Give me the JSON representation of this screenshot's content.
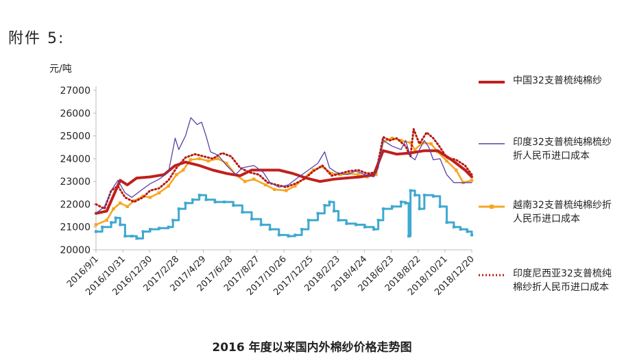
{
  "header": {
    "attachment_label": "附件 5:"
  },
  "caption": "2016 年度以来国内外棉纱价格走势图",
  "colors": {
    "china": "#c0201d",
    "india": "#5b3fa6",
    "vietnam": "#f5a623",
    "indonesia": "#b8190f",
    "lower_series": "#3fa9d0"
  },
  "chart_data": {
    "type": "line",
    "ylabel": "元/吨",
    "ylim": [
      20000,
      27000
    ],
    "yticks": [
      "27000",
      "26000",
      "25000",
      "24000",
      "23000",
      "22000",
      "21000",
      "20000"
    ],
    "xlim": [
      "2016-09-01",
      "2018-12-20"
    ],
    "xticks": [
      {
        "date": "2016-09-01",
        "label": "2016/9/1"
      },
      {
        "date": "2016-10-31",
        "label": "2016/10/31"
      },
      {
        "date": "2016-12-30",
        "label": "2016/12/30"
      },
      {
        "date": "2017-02-28",
        "label": "2017/2/28"
      },
      {
        "date": "2017-04-29",
        "label": "2017/4/29"
      },
      {
        "date": "2017-06-28",
        "label": "2017/6/28"
      },
      {
        "date": "2017-08-27",
        "label": "2017/8/27"
      },
      {
        "date": "2017-10-26",
        "label": "2017/10/26"
      },
      {
        "date": "2017-12-25",
        "label": "2017/12/25"
      },
      {
        "date": "2018-02-23",
        "label": "2018/2/23"
      },
      {
        "date": "2018-04-24",
        "label": "2018/4/24"
      },
      {
        "date": "2018-06-23",
        "label": "2018/6/23"
      },
      {
        "date": "2018-08-22",
        "label": "2018/8/22"
      },
      {
        "date": "2018-10-21",
        "label": "2018/10/21"
      },
      {
        "date": "2018-12-20",
        "label": "2018/12/20"
      }
    ],
    "grid": false,
    "legend_position": "right",
    "series": [
      {
        "key": "china",
        "name": "中国32支普梳纯棉纱",
        "style": "thick-solid",
        "points": [
          [
            "2016-09-01",
            21600
          ],
          [
            "2016-09-25",
            21700
          ],
          [
            "2016-10-15",
            22600
          ],
          [
            "2016-10-25",
            23050
          ],
          [
            "2016-11-10",
            22850
          ],
          [
            "2016-12-01",
            23150
          ],
          [
            "2016-12-31",
            23200
          ],
          [
            "2017-01-31",
            23300
          ],
          [
            "2017-02-25",
            23700
          ],
          [
            "2017-03-20",
            23850
          ],
          [
            "2017-04-20",
            23700
          ],
          [
            "2017-05-20",
            23500
          ],
          [
            "2017-06-20",
            23350
          ],
          [
            "2017-07-20",
            23250
          ],
          [
            "2017-08-15",
            23500
          ],
          [
            "2017-09-15",
            23500
          ],
          [
            "2017-10-15",
            23500
          ],
          [
            "2017-11-15",
            23350
          ],
          [
            "2017-12-15",
            23150
          ],
          [
            "2018-01-15",
            23000
          ],
          [
            "2018-02-15",
            23100
          ],
          [
            "2018-03-15",
            23150
          ],
          [
            "2018-04-15",
            23200
          ],
          [
            "2018-05-15",
            23300
          ],
          [
            "2018-06-05",
            24350
          ],
          [
            "2018-07-05",
            24200
          ],
          [
            "2018-08-05",
            24250
          ],
          [
            "2018-09-05",
            24350
          ],
          [
            "2018-10-05",
            24350
          ],
          [
            "2018-11-05",
            23950
          ],
          [
            "2018-12-05",
            23500
          ],
          [
            "2018-12-20",
            23200
          ]
        ]
      },
      {
        "key": "india",
        "name": "印度32支普梳纯棉梳纱折人民币进口成本",
        "style": "thin-solid",
        "points": [
          [
            "2016-09-01",
            21600
          ],
          [
            "2016-09-20",
            21900
          ],
          [
            "2016-10-05",
            22600
          ],
          [
            "2016-10-20",
            23050
          ],
          [
            "2016-11-05",
            22500
          ],
          [
            "2016-11-20",
            22300
          ],
          [
            "2016-12-10",
            22600
          ],
          [
            "2016-12-31",
            22900
          ],
          [
            "2017-01-20",
            23100
          ],
          [
            "2017-02-10",
            23400
          ],
          [
            "2017-02-25",
            24900
          ],
          [
            "2017-03-05",
            24400
          ],
          [
            "2017-03-20",
            25000
          ],
          [
            "2017-04-01",
            25800
          ],
          [
            "2017-04-15",
            25500
          ],
          [
            "2017-04-25",
            25600
          ],
          [
            "2017-05-05",
            25000
          ],
          [
            "2017-05-15",
            24300
          ],
          [
            "2017-06-01",
            24150
          ],
          [
            "2017-06-20",
            23700
          ],
          [
            "2017-07-10",
            23300
          ],
          [
            "2017-07-25",
            23600
          ],
          [
            "2017-08-20",
            23700
          ],
          [
            "2017-09-10",
            23400
          ],
          [
            "2017-09-25",
            22950
          ],
          [
            "2017-10-15",
            22750
          ],
          [
            "2017-11-05",
            22850
          ],
          [
            "2017-11-25",
            23150
          ],
          [
            "2017-12-20",
            23500
          ],
          [
            "2018-01-10",
            23800
          ],
          [
            "2018-01-25",
            24300
          ],
          [
            "2018-02-05",
            23600
          ],
          [
            "2018-02-20",
            23400
          ],
          [
            "2018-03-15",
            23300
          ],
          [
            "2018-04-05",
            23450
          ],
          [
            "2018-04-25",
            23300
          ],
          [
            "2018-05-15",
            23200
          ],
          [
            "2018-05-25",
            23600
          ],
          [
            "2018-06-05",
            24800
          ],
          [
            "2018-06-25",
            24550
          ],
          [
            "2018-07-15",
            24400
          ],
          [
            "2018-07-25",
            24800
          ],
          [
            "2018-08-05",
            24100
          ],
          [
            "2018-08-15",
            23950
          ],
          [
            "2018-08-25",
            24400
          ],
          [
            "2018-09-05",
            24800
          ],
          [
            "2018-09-15",
            24500
          ],
          [
            "2018-09-25",
            23950
          ],
          [
            "2018-10-10",
            24000
          ],
          [
            "2018-10-25",
            23300
          ],
          [
            "2018-11-10",
            22950
          ],
          [
            "2018-12-01",
            22950
          ],
          [
            "2018-12-20",
            22950
          ]
        ]
      },
      {
        "key": "vietnam",
        "name": "越南32支普梳纯棉纱折人民币进口成本",
        "style": "solid-markers",
        "points": [
          [
            "2016-09-01",
            21100
          ],
          [
            "2016-09-25",
            21300
          ],
          [
            "2016-10-10",
            21800
          ],
          [
            "2016-10-25",
            22050
          ],
          [
            "2016-11-10",
            21900
          ],
          [
            "2016-11-25",
            22150
          ],
          [
            "2016-12-15",
            22350
          ],
          [
            "2016-12-31",
            22300
          ],
          [
            "2017-01-20",
            22500
          ],
          [
            "2017-02-10",
            22800
          ],
          [
            "2017-02-28",
            23300
          ],
          [
            "2017-03-15",
            23500
          ],
          [
            "2017-03-31",
            23950
          ],
          [
            "2017-04-20",
            24000
          ],
          [
            "2017-05-10",
            23900
          ],
          [
            "2017-05-31",
            24000
          ],
          [
            "2017-06-20",
            23800
          ],
          [
            "2017-07-10",
            23300
          ],
          [
            "2017-07-31",
            23000
          ],
          [
            "2017-08-20",
            23100
          ],
          [
            "2017-09-15",
            22850
          ],
          [
            "2017-10-05",
            22650
          ],
          [
            "2017-10-31",
            22600
          ],
          [
            "2017-11-20",
            22800
          ],
          [
            "2017-12-10",
            23150
          ],
          [
            "2017-12-31",
            23500
          ],
          [
            "2018-01-20",
            23650
          ],
          [
            "2018-02-10",
            23350
          ],
          [
            "2018-03-01",
            23300
          ],
          [
            "2018-03-20",
            23350
          ],
          [
            "2018-04-10",
            23300
          ],
          [
            "2018-04-30",
            23200
          ],
          [
            "2018-05-20",
            23300
          ],
          [
            "2018-06-05",
            24750
          ],
          [
            "2018-06-25",
            24900
          ],
          [
            "2018-07-15",
            24800
          ],
          [
            "2018-08-05",
            24700
          ],
          [
            "2018-08-15",
            24400
          ],
          [
            "2018-09-01",
            24700
          ],
          [
            "2018-09-20",
            24650
          ],
          [
            "2018-10-05",
            24300
          ],
          [
            "2018-10-25",
            23900
          ],
          [
            "2018-11-15",
            23500
          ],
          [
            "2018-12-01",
            22950
          ],
          [
            "2018-12-20",
            23050
          ]
        ]
      },
      {
        "key": "indonesia",
        "name": "印度尼西亚32支普梳纯棉纱折人民币进口成本",
        "style": "dotted",
        "points": [
          [
            "2016-09-01",
            22000
          ],
          [
            "2016-09-20",
            21800
          ],
          [
            "2016-10-05",
            22600
          ],
          [
            "2016-10-20",
            22800
          ],
          [
            "2016-11-05",
            22300
          ],
          [
            "2016-11-25",
            22100
          ],
          [
            "2016-12-15",
            22300
          ],
          [
            "2016-12-31",
            22600
          ],
          [
            "2017-01-20",
            22700
          ],
          [
            "2017-02-10",
            23050
          ],
          [
            "2017-02-28",
            23600
          ],
          [
            "2017-03-20",
            24050
          ],
          [
            "2017-04-10",
            24200
          ],
          [
            "2017-04-30",
            24100
          ],
          [
            "2017-05-20",
            24000
          ],
          [
            "2017-06-10",
            24250
          ],
          [
            "2017-06-30",
            24100
          ],
          [
            "2017-07-20",
            23600
          ],
          [
            "2017-08-10",
            23400
          ],
          [
            "2017-08-31",
            23300
          ],
          [
            "2017-09-20",
            22950
          ],
          [
            "2017-10-10",
            22850
          ],
          [
            "2017-10-31",
            22750
          ],
          [
            "2017-11-20",
            22900
          ],
          [
            "2017-12-10",
            23100
          ],
          [
            "2017-12-31",
            23450
          ],
          [
            "2018-01-20",
            23700
          ],
          [
            "2018-02-10",
            23250
          ],
          [
            "2018-03-01",
            23350
          ],
          [
            "2018-03-20",
            23450
          ],
          [
            "2018-04-10",
            23500
          ],
          [
            "2018-04-30",
            23350
          ],
          [
            "2018-05-20",
            23400
          ],
          [
            "2018-06-05",
            24950
          ],
          [
            "2018-06-20",
            24800
          ],
          [
            "2018-07-05",
            24900
          ],
          [
            "2018-07-25",
            24550
          ],
          [
            "2018-08-05",
            24100
          ],
          [
            "2018-08-12",
            25300
          ],
          [
            "2018-08-25",
            24650
          ],
          [
            "2018-09-10",
            25150
          ],
          [
            "2018-09-25",
            24900
          ],
          [
            "2018-10-10",
            24500
          ],
          [
            "2018-10-25",
            24050
          ],
          [
            "2018-11-15",
            23950
          ],
          [
            "2018-12-05",
            23700
          ],
          [
            "2018-12-20",
            23300
          ]
        ]
      },
      {
        "key": "lower",
        "style": "step-markers",
        "points": [
          [
            "2016-09-01",
            20800
          ],
          [
            "2016-09-15",
            21000
          ],
          [
            "2016-10-05",
            21200
          ],
          [
            "2016-10-15",
            21400
          ],
          [
            "2016-10-25",
            21100
          ],
          [
            "2016-11-05",
            20600
          ],
          [
            "2016-11-20",
            20600
          ],
          [
            "2016-12-01",
            20500
          ],
          [
            "2016-12-15",
            20800
          ],
          [
            "2016-12-31",
            20900
          ],
          [
            "2017-01-20",
            20950
          ],
          [
            "2017-02-10",
            21000
          ],
          [
            "2017-02-20",
            21300
          ],
          [
            "2017-03-05",
            21800
          ],
          [
            "2017-03-20",
            22050
          ],
          [
            "2017-04-05",
            22200
          ],
          [
            "2017-04-20",
            22400
          ],
          [
            "2017-05-05",
            22200
          ],
          [
            "2017-05-25",
            22100
          ],
          [
            "2017-06-15",
            22100
          ],
          [
            "2017-07-05",
            21950
          ],
          [
            "2017-07-25",
            21650
          ],
          [
            "2017-08-15",
            21350
          ],
          [
            "2017-09-05",
            21100
          ],
          [
            "2017-09-25",
            20900
          ],
          [
            "2017-10-15",
            20650
          ],
          [
            "2017-11-05",
            20600
          ],
          [
            "2017-11-20",
            20650
          ],
          [
            "2017-12-05",
            20900
          ],
          [
            "2017-12-20",
            21300
          ],
          [
            "2018-01-10",
            21600
          ],
          [
            "2018-01-25",
            21950
          ],
          [
            "2018-02-05",
            22100
          ],
          [
            "2018-02-15",
            21700
          ],
          [
            "2018-02-25",
            21300
          ],
          [
            "2018-03-15",
            21150
          ],
          [
            "2018-04-05",
            21100
          ],
          [
            "2018-04-25",
            21000
          ],
          [
            "2018-05-15",
            20900
          ],
          [
            "2018-05-25",
            21300
          ],
          [
            "2018-06-05",
            21800
          ],
          [
            "2018-06-25",
            21900
          ],
          [
            "2018-07-15",
            22100
          ],
          [
            "2018-07-25",
            22050
          ],
          [
            "2018-08-01",
            20600
          ],
          [
            "2018-08-05",
            22600
          ],
          [
            "2018-08-15",
            22400
          ],
          [
            "2018-08-25",
            21800
          ],
          [
            "2018-09-05",
            22400
          ],
          [
            "2018-09-25",
            22350
          ],
          [
            "2018-10-10",
            21900
          ],
          [
            "2018-10-25",
            21200
          ],
          [
            "2018-11-10",
            21000
          ],
          [
            "2018-11-25",
            20900
          ],
          [
            "2018-12-10",
            20800
          ],
          [
            "2018-12-20",
            20650
          ]
        ]
      }
    ]
  }
}
